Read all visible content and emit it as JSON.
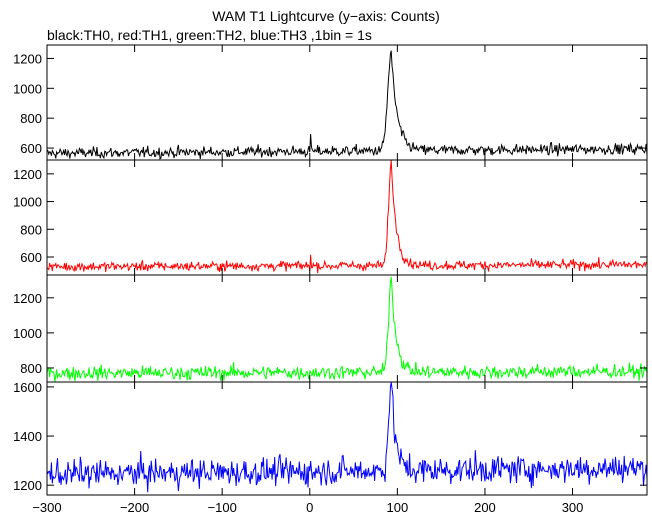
{
  "chart_data": {
    "type": "line",
    "title": "WAM T1 Lightcurve (y−axis: Counts)",
    "subtitle": "black:TH0, red:TH1, green:TH2, blue:TH3 ,1bin = 1s",
    "xlabel": "",
    "ylabel": "",
    "xlim": [
      -300,
      385
    ],
    "x_ticks": [
      -300,
      -200,
      -100,
      0,
      100,
      200,
      300
    ],
    "x_tick_labels": [
      "−300",
      "−200",
      "−100",
      "0",
      "100",
      "200",
      "300"
    ],
    "x_step": 1,
    "grid": false,
    "panels": [
      {
        "name": "TH0",
        "color": "#000000",
        "ylim": [
          520,
          1290
        ],
        "y_ticks": [
          600,
          800,
          1000,
          1200
        ],
        "baseline_start": 565,
        "baseline_end": 595,
        "noise": 18,
        "peak": {
          "x": 93,
          "height": 650,
          "rise": 4,
          "decay": 7
        },
        "precursor": {
          "x": 1,
          "height": 110
        }
      },
      {
        "name": "TH1",
        "color": "#ff0000",
        "ylim": [
          470,
          1300
        ],
        "y_ticks": [
          600,
          800,
          1000,
          1200
        ],
        "baseline_start": 530,
        "baseline_end": 545,
        "noise": 17,
        "peak": {
          "x": 93,
          "height": 740,
          "rise": 3,
          "decay": 6
        },
        "precursor": {
          "x": 1,
          "height": 70
        }
      },
      {
        "name": "TH2",
        "color": "#00ff00",
        "ylim": [
          720,
          1330
        ],
        "y_ticks": [
          800,
          1000,
          1200
        ],
        "baseline_start": 770,
        "baseline_end": 780,
        "noise": 20,
        "peak": {
          "x": 93,
          "height": 540,
          "rise": 3,
          "decay": 6
        },
        "precursor": {
          "x": 1,
          "height": 0
        }
      },
      {
        "name": "TH3",
        "color": "#0000ff",
        "ylim": [
          1160,
          1620
        ],
        "y_ticks": [
          1200,
          1400,
          1600
        ],
        "baseline_start": 1245,
        "baseline_end": 1270,
        "noise": 28,
        "peak": {
          "x": 93,
          "height": 360,
          "rise": 3,
          "decay": 5
        },
        "precursor": {
          "x": 1,
          "height": 0
        }
      }
    ]
  }
}
